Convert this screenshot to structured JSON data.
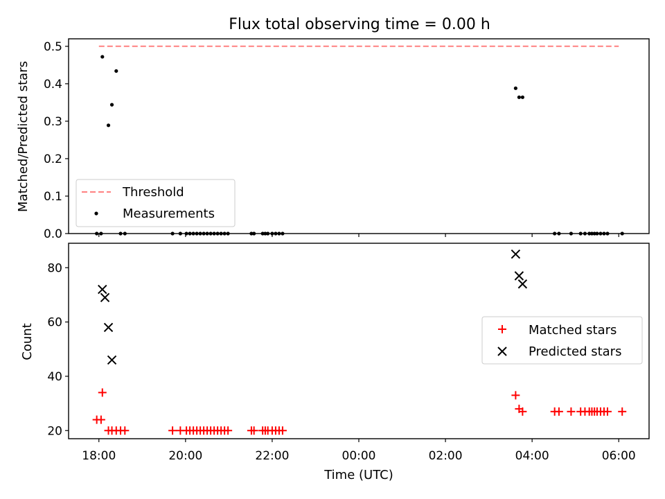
{
  "figure": {
    "title": "Flux total observing time = 0.00 h"
  },
  "chart_data": [
    {
      "type": "scatter",
      "ylabel": "Matched/Predicted stars",
      "xlabel": "",
      "ylim": [
        0,
        0.52
      ],
      "yticks": [
        0.0,
        0.1,
        0.2,
        0.3,
        0.4,
        0.5
      ],
      "ytick_labels": [
        "0.0",
        "0.1",
        "0.2",
        "0.3",
        "0.4",
        "0.5"
      ],
      "legend": {
        "placement": "lower-left",
        "entries": [
          "Threshold",
          "Measurements"
        ]
      },
      "threshold": {
        "name": "Threshold",
        "value": 0.5,
        "x_range": [
          -6.0,
          6.0
        ],
        "color": "#ff8080",
        "style": "dashed"
      },
      "series": [
        {
          "name": "Measurements",
          "color": "#000000",
          "marker": "dot",
          "x": [
            -6.05,
            -5.95,
            -5.92,
            -5.78,
            -5.7,
            -5.6,
            -5.5,
            -5.4,
            -4.3,
            -4.12,
            -3.98,
            -3.9,
            -3.82,
            -3.74,
            -3.66,
            -3.58,
            -3.5,
            -3.42,
            -3.34,
            -3.26,
            -3.18,
            -3.1,
            -3.02,
            -2.48,
            -2.42,
            -2.22,
            -2.16,
            -2.1,
            -2.0,
            -1.92,
            -1.84,
            -1.76,
            3.62,
            3.7,
            3.78,
            4.52,
            4.62,
            4.9,
            5.12,
            5.22,
            5.32,
            5.38,
            5.44,
            5.5,
            5.58,
            5.66,
            5.74,
            6.08
          ],
          "y": [
            0,
            0,
            0.472,
            0.289,
            0.344,
            0.434,
            0,
            0,
            0,
            0,
            0,
            0,
            0,
            0,
            0,
            0,
            0,
            0,
            0,
            0,
            0,
            0,
            0,
            0,
            0,
            0,
            0,
            0,
            0,
            0,
            0,
            0,
            0.388,
            0.364,
            0.364,
            0,
            0,
            0,
            0,
            0,
            0,
            0,
            0,
            0,
            0,
            0,
            0,
            0
          ]
        }
      ]
    },
    {
      "type": "scatter",
      "ylabel": "Count",
      "xlabel": "Time (UTC)",
      "ylim": [
        17,
        89
      ],
      "yticks": [
        20,
        40,
        60,
        80
      ],
      "ytick_labels": [
        "20",
        "40",
        "60",
        "80"
      ],
      "xlim": [
        -6.7,
        6.7
      ],
      "xticks": [
        -6,
        -4,
        -2,
        0,
        2,
        4,
        6
      ],
      "xtick_labels": [
        "18:00",
        "20:00",
        "22:00",
        "00:00",
        "02:00",
        "04:00",
        "06:00"
      ],
      "legend": {
        "placement": "right",
        "entries": [
          "Matched stars",
          "Predicted stars"
        ]
      },
      "series": [
        {
          "name": "Matched stars",
          "color": "#ff0000",
          "marker": "plus",
          "x": [
            -6.05,
            -5.95,
            -5.92,
            -5.78,
            -5.7,
            -5.6,
            -5.5,
            -5.4,
            -4.3,
            -4.12,
            -3.98,
            -3.9,
            -3.82,
            -3.74,
            -3.66,
            -3.58,
            -3.5,
            -3.42,
            -3.34,
            -3.26,
            -3.18,
            -3.1,
            -3.02,
            -2.48,
            -2.42,
            -2.22,
            -2.16,
            -2.1,
            -2.0,
            -1.92,
            -1.84,
            -1.76,
            3.62,
            3.7,
            3.78,
            4.52,
            4.62,
            4.9,
            5.12,
            5.22,
            5.32,
            5.38,
            5.44,
            5.5,
            5.58,
            5.66,
            5.74,
            6.08
          ],
          "y": [
            24,
            24,
            34,
            20,
            20,
            20,
            20,
            20,
            20,
            20,
            20,
            20,
            20,
            20,
            20,
            20,
            20,
            20,
            20,
            20,
            20,
            20,
            20,
            20,
            20,
            20,
            20,
            20,
            20,
            20,
            20,
            20,
            33,
            28,
            27,
            27,
            27,
            27,
            27,
            27,
            27,
            27,
            27,
            27,
            27,
            27,
            27,
            27
          ]
        },
        {
          "name": "Predicted stars",
          "color": "#000000",
          "marker": "x",
          "x": [
            -5.92,
            -5.86,
            -5.78,
            -5.7,
            3.62,
            3.7,
            3.78
          ],
          "y": [
            72,
            69,
            58,
            46,
            85,
            77,
            74
          ]
        }
      ]
    }
  ]
}
